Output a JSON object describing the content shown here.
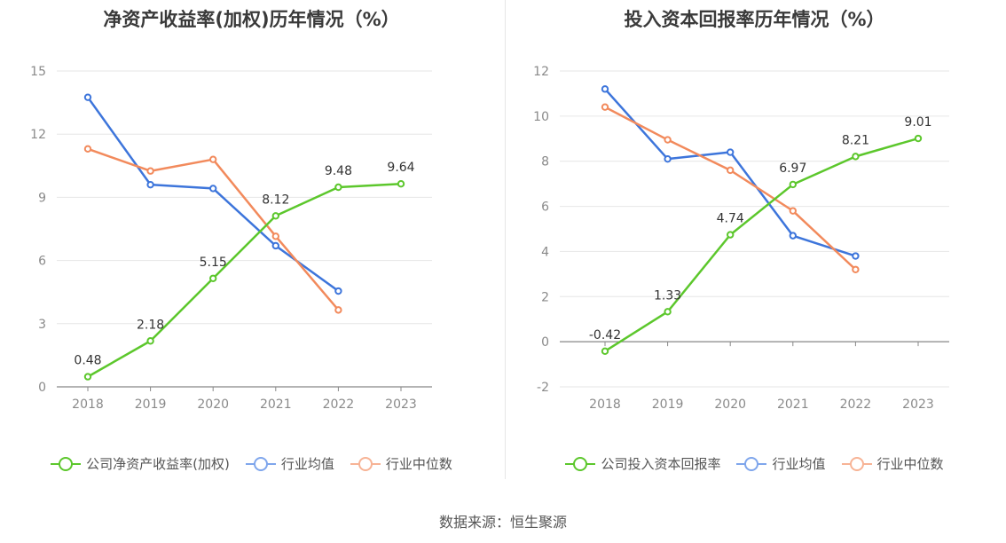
{
  "source": "数据来源：恒生聚源",
  "colors": {
    "company": "#5cc72c",
    "avg": "#3d75db",
    "median": "#f28a5c",
    "legend_avg": "#7fa6ec",
    "legend_median": "#f7b395"
  },
  "chart_data": [
    {
      "type": "line",
      "title": "净资产收益率(加权)历年情况（%）",
      "categories": [
        "2018",
        "2019",
        "2020",
        "2021",
        "2022",
        "2023"
      ],
      "ylim": [
        0,
        15
      ],
      "yticks": [
        0,
        3,
        6,
        9,
        12,
        15
      ],
      "ytick_labels": [
        "0",
        "3",
        "6",
        "9",
        "12",
        "15"
      ],
      "grid": true,
      "legend_position": "bottom",
      "series": [
        {
          "name": "公司净资产收益率(加权)",
          "key": "company",
          "values": [
            0.48,
            2.18,
            5.15,
            8.12,
            9.48,
            9.64
          ],
          "labels": [
            "0.48",
            "2.18",
            "5.15",
            "8.12",
            "9.48",
            "9.64"
          ]
        },
        {
          "name": "行业均值",
          "key": "avg",
          "values": [
            13.75,
            9.6,
            9.42,
            6.7,
            4.55,
            null
          ]
        },
        {
          "name": "行业中位数",
          "key": "median",
          "values": [
            11.3,
            10.25,
            10.8,
            7.15,
            3.65,
            null
          ]
        }
      ]
    },
    {
      "type": "line",
      "title": "投入资本回报率历年情况（%）",
      "categories": [
        "2018",
        "2019",
        "2020",
        "2021",
        "2022",
        "2023"
      ],
      "ylim": [
        -2,
        12
      ],
      "yticks": [
        -2,
        0,
        2,
        4,
        6,
        8,
        10,
        12
      ],
      "ytick_labels": [
        "-2",
        "0",
        "2",
        "4",
        "6",
        "8",
        "10",
        "12"
      ],
      "grid": true,
      "legend_position": "bottom",
      "series": [
        {
          "name": "公司投入资本回报率",
          "key": "company",
          "values": [
            -0.42,
            1.33,
            4.74,
            6.97,
            8.21,
            9.01
          ],
          "labels": [
            "-0.42",
            "1.33",
            "4.74",
            "6.97",
            "8.21",
            "9.01"
          ]
        },
        {
          "name": "行业均值",
          "key": "avg",
          "values": [
            11.2,
            8.1,
            8.4,
            4.7,
            3.8,
            null
          ]
        },
        {
          "name": "行业中位数",
          "key": "median",
          "values": [
            10.4,
            8.95,
            7.6,
            5.8,
            3.2,
            null
          ]
        }
      ]
    }
  ]
}
